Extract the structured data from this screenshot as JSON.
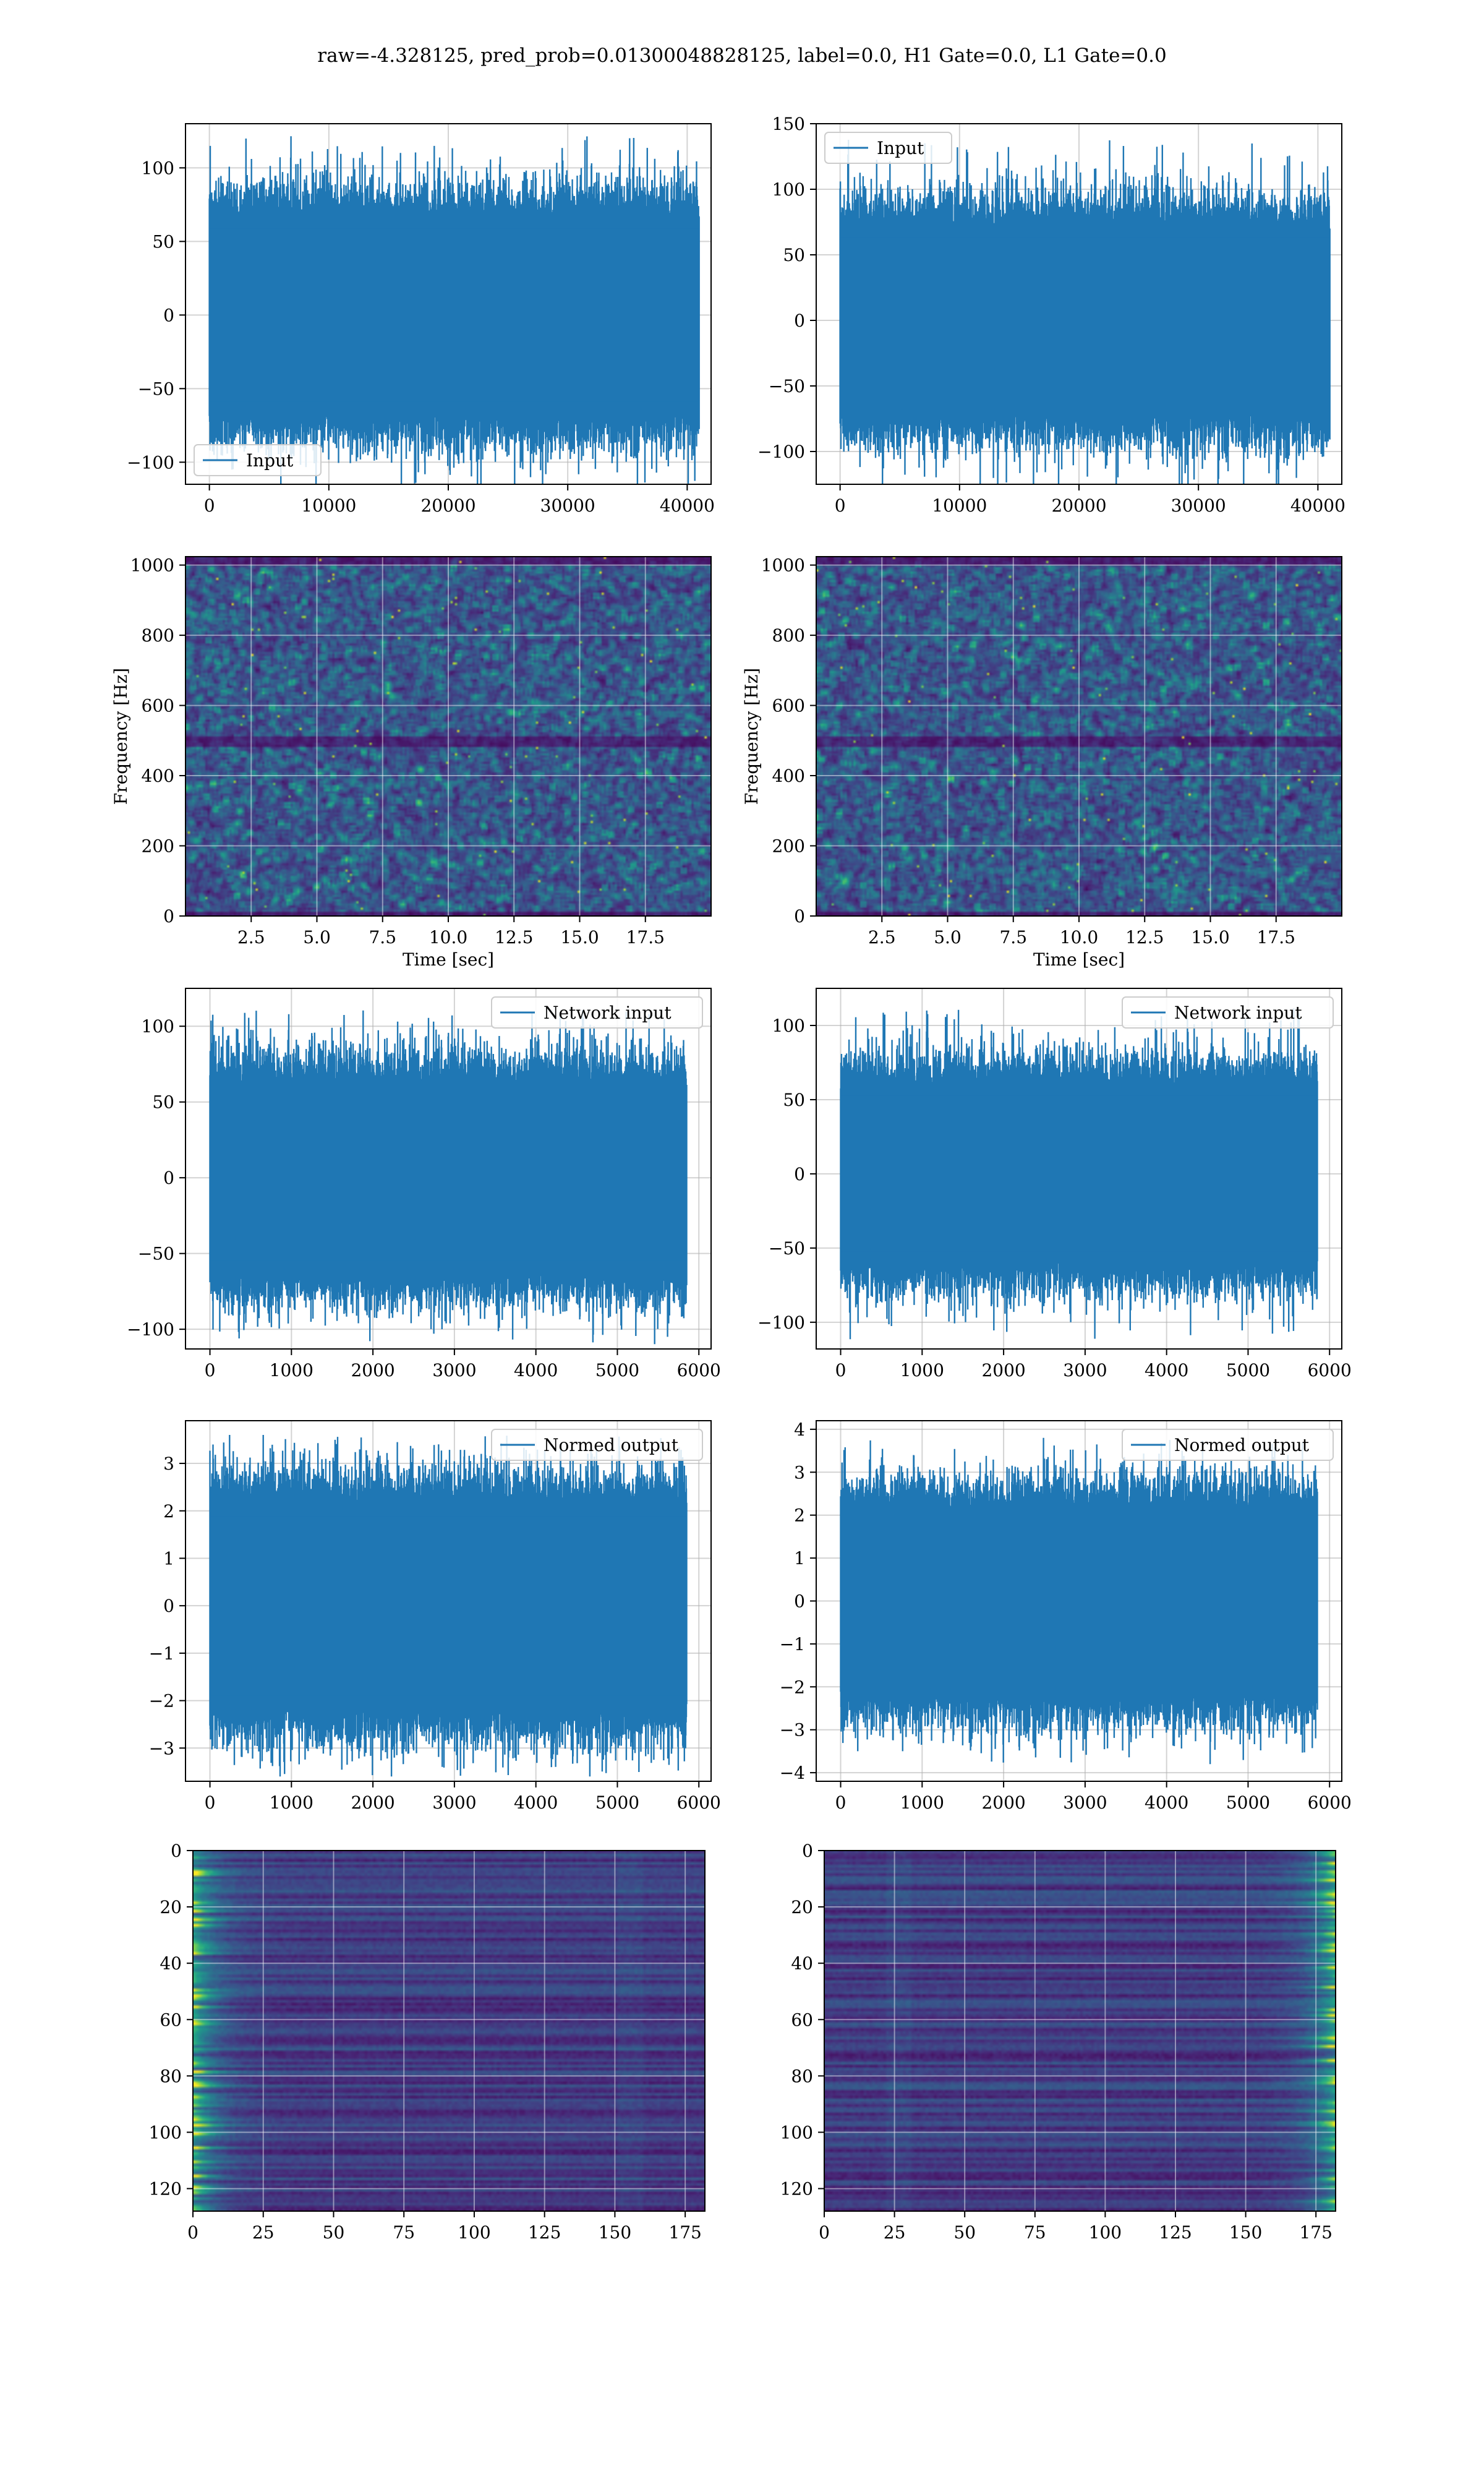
{
  "figure": {
    "suptitle": "raw=-4.328125, pred_prob=0.01300048828125, label=0.0, H1 Gate=0.0, L1 Gate=0.0"
  },
  "chart_data": [
    {
      "id": "input-h1",
      "type": "line",
      "series": [
        {
          "name": "Input"
        }
      ],
      "xlim": [
        -2000,
        42000
      ],
      "ylim": [
        -115,
        130
      ],
      "xticks": [
        "0",
        "10000",
        "20000",
        "30000",
        "40000"
      ],
      "xtick_values": [
        0,
        10000,
        20000,
        30000,
        40000
      ],
      "yticks": [
        "−100",
        "−50",
        "0",
        "50",
        "100"
      ],
      "ytick_values": [
        -100,
        -50,
        0,
        50,
        100
      ],
      "x_extent": [
        0,
        41000
      ],
      "sigma": 28,
      "peak": 122,
      "legend": "lower-left",
      "grid": true,
      "color": "#1f77b4"
    },
    {
      "id": "input-l1",
      "type": "line",
      "series": [
        {
          "name": "Input"
        }
      ],
      "xlim": [
        -2000,
        42000
      ],
      "ylim": [
        -125,
        150
      ],
      "xticks": [
        "0",
        "10000",
        "20000",
        "30000",
        "40000"
      ],
      "xtick_values": [
        0,
        10000,
        20000,
        30000,
        40000
      ],
      "yticks": [
        "−100",
        "−50",
        "0",
        "50",
        "100",
        "150"
      ],
      "ytick_values": [
        -100,
        -50,
        0,
        50,
        100,
        150
      ],
      "x_extent": [
        0,
        41000
      ],
      "sigma": 30,
      "peak": 138,
      "legend": "upper-left",
      "grid": true,
      "color": "#1f77b4"
    },
    {
      "id": "spectrogram-h1",
      "type": "heatmap",
      "xlim": [
        0,
        20
      ],
      "ylim": [
        0,
        1024
      ],
      "xticks": [
        "2.5",
        "5.0",
        "7.5",
        "10.0",
        "12.5",
        "15.0",
        "17.5"
      ],
      "xtick_values": [
        2.5,
        5,
        7.5,
        10,
        12.5,
        15,
        17.5
      ],
      "yticks": [
        "0",
        "200",
        "400",
        "600",
        "800",
        "1000"
      ],
      "ytick_values": [
        0,
        200,
        400,
        600,
        800,
        1000
      ],
      "xlabel": "Time [sec]",
      "ylabel": "Frequency [Hz]",
      "colormap": "viridis",
      "grid": true
    },
    {
      "id": "spectrogram-l1",
      "type": "heatmap",
      "xlim": [
        0,
        20
      ],
      "ylim": [
        0,
        1024
      ],
      "xticks": [
        "2.5",
        "5.0",
        "7.5",
        "10.0",
        "12.5",
        "15.0",
        "17.5"
      ],
      "xtick_values": [
        2.5,
        5,
        7.5,
        10,
        12.5,
        15,
        17.5
      ],
      "yticks": [
        "0",
        "200",
        "400",
        "600",
        "800",
        "1000"
      ],
      "ytick_values": [
        0,
        200,
        400,
        600,
        800,
        1000
      ],
      "xlabel": "Time [sec]",
      "ylabel": "Frequency [Hz]",
      "colormap": "viridis",
      "grid": true
    },
    {
      "id": "network-input-h1",
      "type": "line",
      "series": [
        {
          "name": "Network input"
        }
      ],
      "xlim": [
        -300,
        6150
      ],
      "ylim": [
        -113,
        125
      ],
      "xticks": [
        "0",
        "1000",
        "2000",
        "3000",
        "4000",
        "5000",
        "6000"
      ],
      "xtick_values": [
        0,
        1000,
        2000,
        3000,
        4000,
        5000,
        6000
      ],
      "yticks": [
        "−100",
        "−50",
        "0",
        "50",
        "100"
      ],
      "ytick_values": [
        -100,
        -50,
        0,
        50,
        100
      ],
      "x_extent": [
        0,
        5850
      ],
      "sigma": 26,
      "peak": 112,
      "legend": "upper-right",
      "grid": true,
      "color": "#1f77b4"
    },
    {
      "id": "network-input-l1",
      "type": "line",
      "series": [
        {
          "name": "Network input"
        }
      ],
      "xlim": [
        -300,
        6150
      ],
      "ylim": [
        -118,
        125
      ],
      "xticks": [
        "0",
        "1000",
        "2000",
        "3000",
        "4000",
        "5000",
        "6000"
      ],
      "xtick_values": [
        0,
        1000,
        2000,
        3000,
        4000,
        5000,
        6000
      ],
      "yticks": [
        "−100",
        "−50",
        "0",
        "50",
        "100"
      ],
      "ytick_values": [
        -100,
        -50,
        0,
        50,
        100
      ],
      "x_extent": [
        0,
        5850
      ],
      "sigma": 25,
      "peak": 112,
      "legend": "upper-right",
      "grid": true,
      "color": "#1f77b4"
    },
    {
      "id": "normed-output-h1",
      "type": "line",
      "series": [
        {
          "name": "Normed output"
        }
      ],
      "xlim": [
        -300,
        6150
      ],
      "ylim": [
        -3.7,
        3.9
      ],
      "xticks": [
        "0",
        "1000",
        "2000",
        "3000",
        "4000",
        "5000",
        "6000"
      ],
      "xtick_values": [
        0,
        1000,
        2000,
        3000,
        4000,
        5000,
        6000
      ],
      "yticks": [
        "−3",
        "−2",
        "−1",
        "0",
        "1",
        "2",
        "3"
      ],
      "ytick_values": [
        -3,
        -2,
        -1,
        0,
        1,
        2,
        3
      ],
      "x_extent": [
        0,
        5850
      ],
      "sigma": 0.9,
      "peak": 3.6,
      "legend": "upper-right",
      "grid": true,
      "color": "#1f77b4"
    },
    {
      "id": "normed-output-l1",
      "type": "line",
      "series": [
        {
          "name": "Normed output"
        }
      ],
      "xlim": [
        -300,
        6150
      ],
      "ylim": [
        -4.2,
        4.2
      ],
      "xticks": [
        "0",
        "1000",
        "2000",
        "3000",
        "4000",
        "5000",
        "6000"
      ],
      "xtick_values": [
        0,
        1000,
        2000,
        3000,
        4000,
        5000,
        6000
      ],
      "yticks": [
        "−4",
        "−3",
        "−2",
        "−1",
        "0",
        "1",
        "2",
        "3",
        "4"
      ],
      "ytick_values": [
        -4,
        -3,
        -2,
        -1,
        0,
        1,
        2,
        3,
        4
      ],
      "x_extent": [
        0,
        5850
      ],
      "sigma": 0.9,
      "peak": 3.8,
      "legend": "upper-right",
      "grid": true,
      "color": "#1f77b4"
    },
    {
      "id": "feature-map-h1",
      "type": "heatmap",
      "xlim": [
        0,
        182
      ],
      "ylim": [
        128,
        0
      ],
      "xticks": [
        "0",
        "25",
        "50",
        "75",
        "100",
        "125",
        "150",
        "175"
      ],
      "xtick_values": [
        0,
        25,
        50,
        75,
        100,
        125,
        150,
        175
      ],
      "yticks": [
        "0",
        "20",
        "40",
        "60",
        "80",
        "100",
        "120"
      ],
      "ytick_values": [
        0,
        20,
        40,
        60,
        80,
        100,
        120
      ],
      "colormap": "viridis",
      "grid": true,
      "bright_edge": "left"
    },
    {
      "id": "feature-map-l1",
      "type": "heatmap",
      "xlim": [
        0,
        182
      ],
      "ylim": [
        128,
        0
      ],
      "xticks": [
        "0",
        "25",
        "50",
        "75",
        "100",
        "125",
        "150",
        "175"
      ],
      "xtick_values": [
        0,
        25,
        50,
        75,
        100,
        125,
        150,
        175
      ],
      "yticks": [
        "0",
        "20",
        "40",
        "60",
        "80",
        "100",
        "120"
      ],
      "ytick_values": [
        0,
        20,
        40,
        60,
        80,
        100,
        120
      ],
      "colormap": "viridis",
      "grid": true,
      "bright_edge": "right"
    }
  ]
}
